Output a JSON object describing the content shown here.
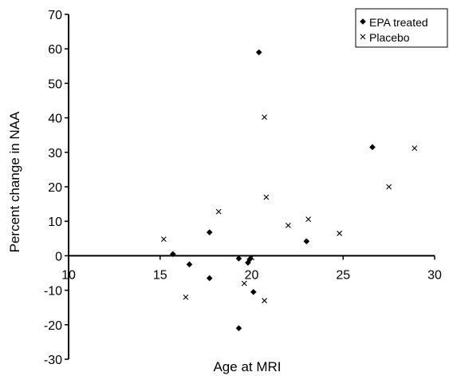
{
  "chart_data": {
    "type": "scatter",
    "title": "",
    "xlabel": "Age at MRI",
    "ylabel": "Percent change in NAA",
    "xlim": [
      10,
      30
    ],
    "ylim": [
      -30,
      70
    ],
    "x_ticks": [
      "10",
      "15",
      "20",
      "25",
      "30"
    ],
    "y_ticks": [
      "-30",
      "-20",
      "-10",
      "0",
      "10",
      "20",
      "30",
      "40",
      "50",
      "60",
      "70"
    ],
    "grid": false,
    "legend_position": "top-right",
    "series": [
      {
        "name": "EPA treated",
        "marker": "diamond",
        "color": "#000000",
        "points": [
          {
            "x": 15.7,
            "y": 0.5
          },
          {
            "x": 16.6,
            "y": -2.5
          },
          {
            "x": 17.7,
            "y": 6.8
          },
          {
            "x": 17.7,
            "y": -6.5
          },
          {
            "x": 19.3,
            "y": -0.8
          },
          {
            "x": 19.3,
            "y": -21.0
          },
          {
            "x": 19.8,
            "y": -2.0
          },
          {
            "x": 19.9,
            "y": -1.0
          },
          {
            "x": 20.1,
            "y": -10.5
          },
          {
            "x": 20.4,
            "y": 59.0
          },
          {
            "x": 23.0,
            "y": 4.2
          },
          {
            "x": 26.6,
            "y": 31.5
          }
        ]
      },
      {
        "name": "Placebo",
        "marker": "x",
        "color": "#000000",
        "points": [
          {
            "x": 15.2,
            "y": 4.8
          },
          {
            "x": 16.4,
            "y": -12.0
          },
          {
            "x": 18.2,
            "y": 12.8
          },
          {
            "x": 19.6,
            "y": -8.0
          },
          {
            "x": 20.0,
            "y": -0.5
          },
          {
            "x": 20.7,
            "y": 40.2
          },
          {
            "x": 20.8,
            "y": 17.0
          },
          {
            "x": 20.7,
            "y": -13.0
          },
          {
            "x": 22.0,
            "y": 8.8
          },
          {
            "x": 23.1,
            "y": 10.6
          },
          {
            "x": 24.8,
            "y": 6.5
          },
          {
            "x": 27.5,
            "y": 20.0
          },
          {
            "x": 28.9,
            "y": 31.2
          }
        ]
      }
    ]
  }
}
